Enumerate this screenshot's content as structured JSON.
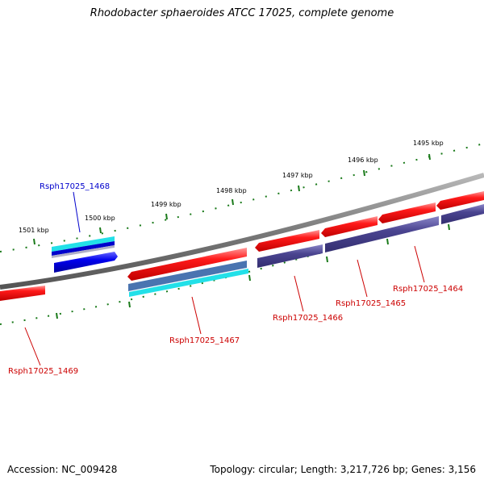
{
  "title": "Rhodobacter sphaeroides ATCC 17025, complete genome",
  "footer": {
    "accession_label": "Accession: NC_009428",
    "summary": "Topology: circular; Length: 3,217,726 bp; Genes: 3,156"
  },
  "ruler_labels": [
    "1501 kbp",
    "1500 kbp",
    "1499 kbp",
    "1498 kbp",
    "1497 kbp",
    "1496 kbp",
    "1495 kbp"
  ],
  "genes": [
    {
      "id": "Rsph17025_1468",
      "color": "#0000cc"
    },
    {
      "id": "Rsph17025_1469",
      "color": "#cc0000"
    },
    {
      "id": "Rsph17025_1467",
      "color": "#cc0000"
    },
    {
      "id": "Rsph17025_1466",
      "color": "#cc0000"
    },
    {
      "id": "Rsph17025_1465",
      "color": "#cc0000"
    },
    {
      "id": "Rsph17025_1464",
      "color": "#cc0000"
    }
  ],
  "colors": {
    "backbone": "#808080",
    "ticks": "#1a7a1a",
    "cds_forward": "#ff2222",
    "cds_reverse": "#1010ee",
    "feature_purple": "#4a4490",
    "feature_cyan": "#22e0e8",
    "feature_steel": "#4a74b0"
  }
}
